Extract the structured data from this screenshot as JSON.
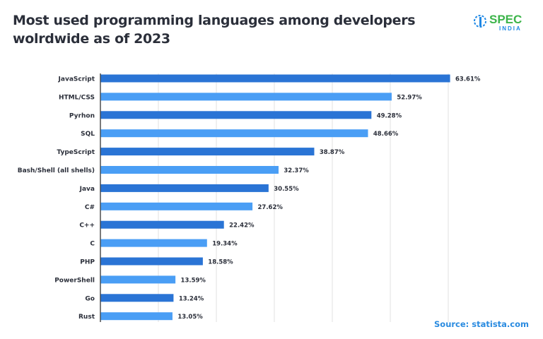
{
  "title_line1": "Most used programming languages among developers",
  "title_line2": "wolrdwide as of 2023",
  "logo": {
    "text": "SPEC",
    "subtext": "INDIA",
    "color_green": "#3cb44a",
    "color_blue": "#1e88e5"
  },
  "source": "Source: statista.com",
  "chart_data": {
    "type": "bar",
    "orientation": "horizontal",
    "title": "Most used programming languages among developers wolrdwide as of 2023",
    "categories": [
      "JavaScript",
      "HTML/CSS",
      "Pyrhon",
      "SQL",
      "TypeScript",
      "Bash/Shell (all shells)",
      "Java",
      "C#",
      "C++",
      "C",
      "PHP",
      "PowerShell",
      "Go",
      "Rust"
    ],
    "values": [
      63.61,
      52.97,
      49.28,
      48.66,
      38.87,
      32.37,
      30.55,
      27.62,
      22.42,
      19.34,
      18.58,
      13.59,
      13.24,
      13.05
    ],
    "data_labels": [
      "63.61%",
      "52.97%",
      "49.28%",
      "48.66%",
      "38.87%",
      "32.37%",
      "30.55%",
      "27.62%",
      "22.42%",
      "19.34%",
      "18.58%",
      "13.59%",
      "13.24%",
      "13.05%"
    ],
    "unit": "%",
    "xlim": [
      0,
      66
    ],
    "grid": true,
    "colors": [
      "#2a74d5",
      "#4a9ef5"
    ]
  }
}
